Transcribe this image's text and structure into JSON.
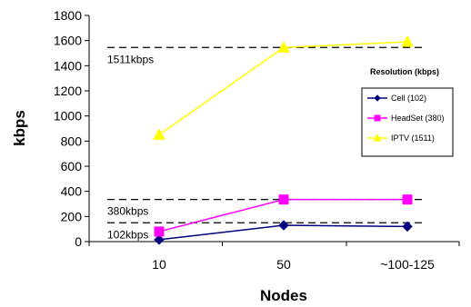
{
  "chart_data": {
    "type": "line",
    "title": "",
    "xlabel": "Nodes",
    "ylabel": "kbps",
    "categories": [
      "10",
      "50",
      "~100-125"
    ],
    "ylim": [
      0,
      1800
    ],
    "yticks": [
      0,
      200,
      400,
      600,
      800,
      1000,
      1200,
      1400,
      1600,
      1800
    ],
    "grid": false,
    "legend": {
      "title": "Resolution (kbps)",
      "placement": "right"
    },
    "series": [
      {
        "name": "Cell (102)",
        "values": [
          15,
          130,
          120
        ],
        "color": "#000080",
        "marker": "diamond"
      },
      {
        "name": "HeadSet (380)",
        "values": [
          80,
          335,
          335
        ],
        "color": "#ff00ff",
        "marker": "square"
      },
      {
        "name": "IPTV (1511)",
        "values": [
          850,
          1545,
          1590
        ],
        "color": "#ffff00",
        "marker": "triangle"
      }
    ],
    "reference_lines": [
      {
        "value": 1545,
        "label": "1511kbps"
      },
      {
        "value": 335,
        "label": "380kbps"
      },
      {
        "value": 150,
        "label": "102kbps"
      }
    ]
  }
}
